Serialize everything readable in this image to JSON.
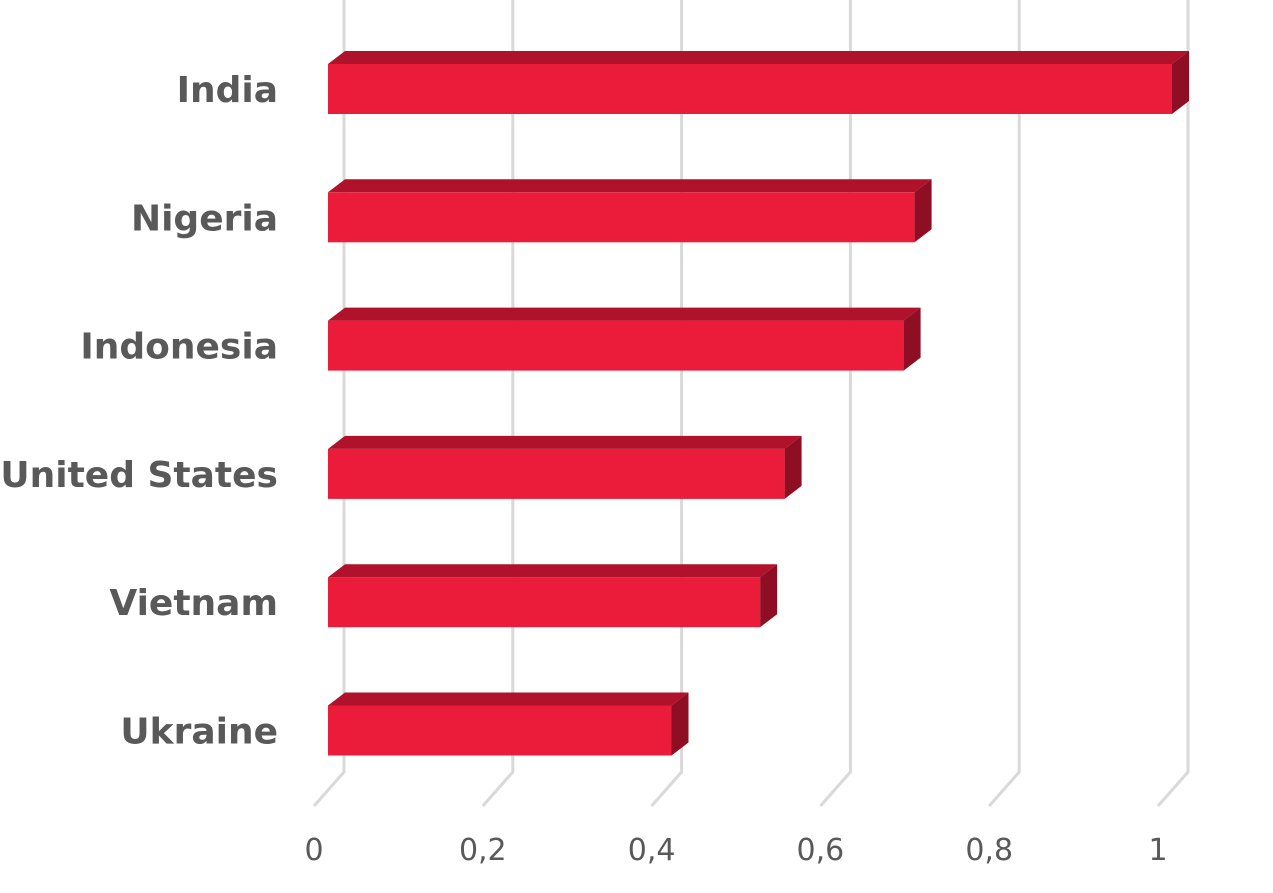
{
  "colors": {
    "bar_front": "#ea1c3a",
    "bar_top": "#b0112b",
    "bar_side": "#8e0e23",
    "gridline": "#d9d9d9",
    "text": "#595959"
  },
  "chart_data": {
    "type": "bar",
    "orientation": "horizontal",
    "style": "3d",
    "title": "",
    "xlabel": "",
    "ylabel": "",
    "categories": [
      "India",
      "Nigeria",
      "Indonesia",
      "United States",
      "Vietnam",
      "Ukraine"
    ],
    "values": [
      1.0,
      0.695,
      0.682,
      0.541,
      0.512,
      0.407
    ],
    "xlim": [
      0,
      1
    ],
    "x_ticks": [
      0,
      0.2,
      0.4,
      0.6,
      0.8,
      1
    ],
    "x_tick_labels": [
      "0",
      "0,2",
      "0,4",
      "0,6",
      "0,8",
      "1"
    ],
    "grid": true,
    "legend": "none"
  }
}
